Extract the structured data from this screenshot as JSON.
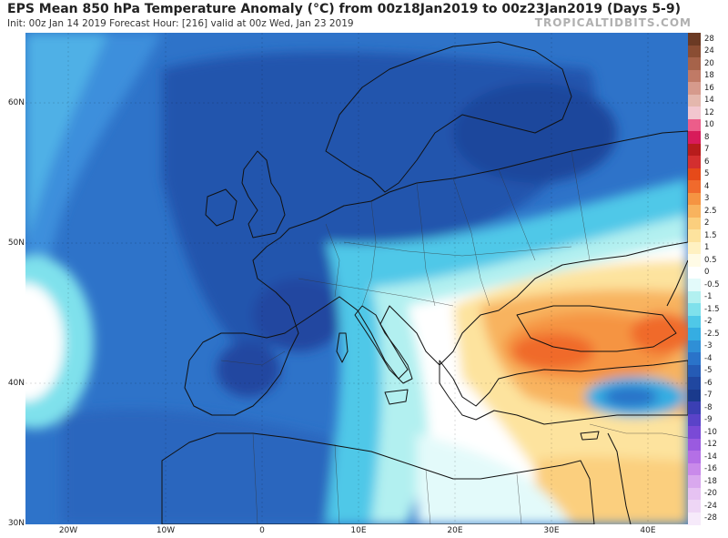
{
  "header": {
    "title": "EPS Mean 850 hPa Temperature Anomaly (°C) from 00z18Jan2019 to 00z23Jan2019 (Days 5-9)",
    "subtitle": "Init: 00z Jan 14 2019   Forecast Hour: [216]   valid at 00z Wed, Jan 23 2019",
    "brand": "TROPICALTIDBITS.COM"
  },
  "map": {
    "lat_labels": [
      "60N",
      "50N",
      "40N",
      "30N"
    ],
    "lon_labels": [
      "20W",
      "10W",
      "0",
      "10E",
      "20E",
      "30E",
      "40E"
    ]
  },
  "colorbar": {
    "levels": [
      {
        "label": "28",
        "color": "#6b3a24"
      },
      {
        "label": "24",
        "color": "#8a4d33"
      },
      {
        "label": "20",
        "color": "#a6634a"
      },
      {
        "label": "18",
        "color": "#c07a66"
      },
      {
        "label": "16",
        "color": "#d69a8c"
      },
      {
        "label": "14",
        "color": "#e4b7ad"
      },
      {
        "label": "12",
        "color": "#f2c6cf"
      },
      {
        "label": "10",
        "color": "#ec5d8a"
      },
      {
        "label": "8",
        "color": "#d81b5a"
      },
      {
        "label": "7",
        "color": "#b71c1c"
      },
      {
        "label": "6",
        "color": "#d32f2f"
      },
      {
        "label": "5",
        "color": "#e64a19"
      },
      {
        "label": "4",
        "color": "#f06a2c"
      },
      {
        "label": "3",
        "color": "#f59442"
      },
      {
        "label": "2.5",
        "color": "#f8b35e"
      },
      {
        "label": "2",
        "color": "#fbcf7e"
      },
      {
        "label": "1.5",
        "color": "#fde39e"
      },
      {
        "label": "1",
        "color": "#fff1c2"
      },
      {
        "label": "0.5",
        "color": "#fffbe6"
      },
      {
        "label": "0",
        "color": "#ffffff"
      },
      {
        "label": "-0.5",
        "color": "#e3fafa"
      },
      {
        "label": "-1",
        "color": "#b2f0f0"
      },
      {
        "label": "-1.5",
        "color": "#7fe1ec"
      },
      {
        "label": "-2",
        "color": "#4fc8e8"
      },
      {
        "label": "-2.5",
        "color": "#35ade2"
      },
      {
        "label": "-3",
        "color": "#2f8fd6"
      },
      {
        "label": "-4",
        "color": "#2a73c9"
      },
      {
        "label": "-5",
        "color": "#255bb5"
      },
      {
        "label": "-6",
        "color": "#2047a0"
      },
      {
        "label": "-7",
        "color": "#1a3a8c"
      },
      {
        "label": "-8",
        "color": "#3b3fb3"
      },
      {
        "label": "-9",
        "color": "#5a43c8"
      },
      {
        "label": "-10",
        "color": "#7a4ad6"
      },
      {
        "label": "-12",
        "color": "#9a5ae0"
      },
      {
        "label": "-14",
        "color": "#b46fe6"
      },
      {
        "label": "-16",
        "color": "#c98aea"
      },
      {
        "label": "-18",
        "color": "#d9a8ee"
      },
      {
        "label": "-20",
        "color": "#e6c2f2"
      },
      {
        "label": "-24",
        "color": "#eed6f5"
      },
      {
        "label": "-28",
        "color": "#f6eafa"
      }
    ]
  }
}
